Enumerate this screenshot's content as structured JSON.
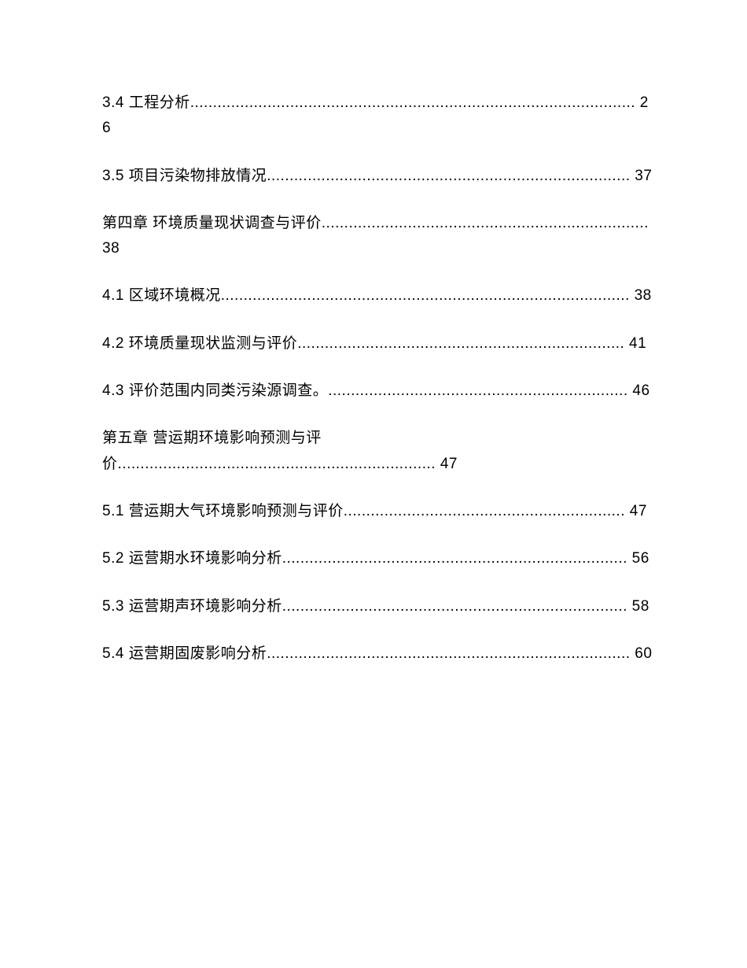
{
  "toc": {
    "text_color": "#000000",
    "background_color": "#ffffff",
    "font_size": 19,
    "entries": [
      {
        "label": "3.4 工程分析",
        "dots": "..........................................................................................",
        "page": "........ 26"
      },
      {
        "label": "3.5 项目污染物排放情况",
        "dots": "................................................................................",
        "page": " 37"
      },
      {
        "label": "第四章 环境质量现状调查与评价",
        "dots": "........................................................................",
        "page": " 38"
      },
      {
        "label": "4.1 区域环境概况",
        "dots": "..........................................................................................",
        "page": " 38"
      },
      {
        "label": "4.2 环境质量现状监测与评价",
        "dots": "........................................................................",
        "page": " 41"
      },
      {
        "label": "4.3 评价范围内同类污染源调查。",
        "dots": "..................................................................",
        "page": " 46"
      },
      {
        "label": "第五章 营运期环境影响预测与评价",
        "dots": "......................................................................",
        "page": " 47"
      },
      {
        "label": "5.1 营运期大气环境影响预测与评价",
        "dots": "..............................................................",
        "page": " 47"
      },
      {
        "label": "5.2 运营期水环境影响分析",
        "dots": "............................................................................",
        "page": " 56"
      },
      {
        "label": "5.3 运营期声环境影响分析",
        "dots": "............................................................................",
        "page": " 58"
      },
      {
        "label": "5.4 运营期固废影响分析",
        "dots": "................................................................................",
        "page": " 60"
      }
    ]
  }
}
